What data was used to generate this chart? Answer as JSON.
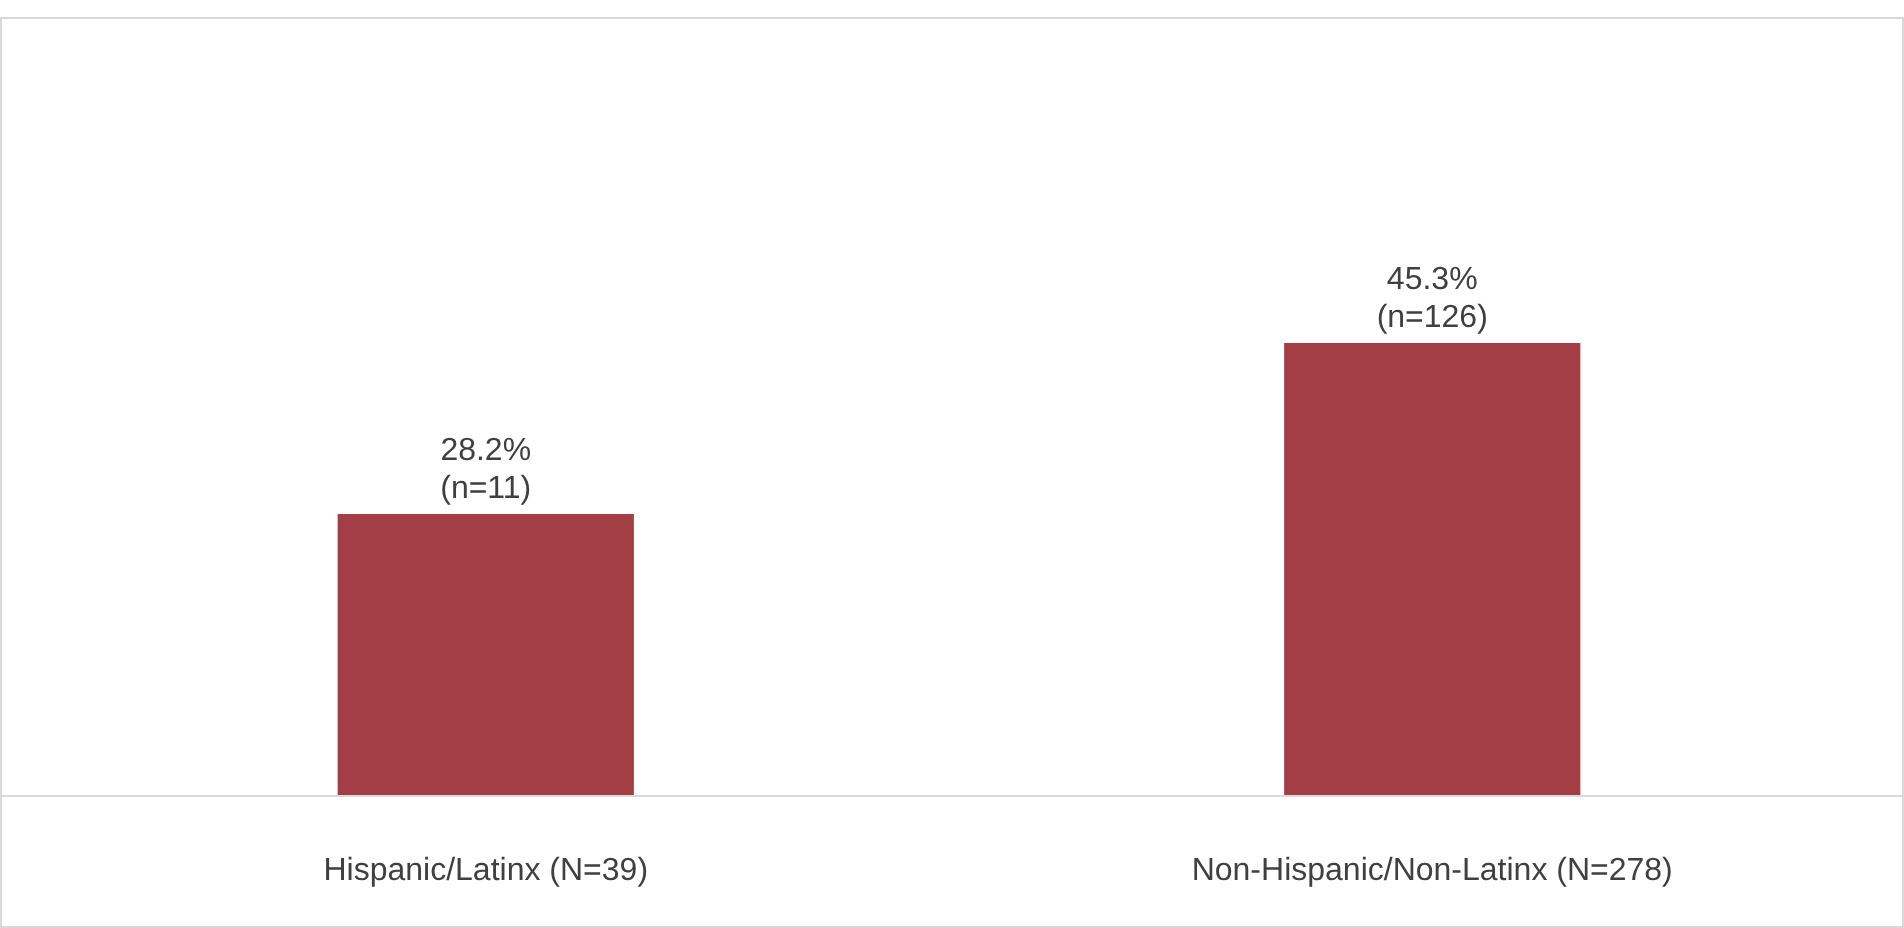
{
  "chart_data": {
    "type": "bar",
    "categories": [
      "Hispanic/Latinx (N=39)",
      "Non-Hispanic/Non-Latinx (N=278)"
    ],
    "values": [
      28.2,
      45.3
    ],
    "color": "#a33e45",
    "value_labels": [
      "28.2%\n(n=11)",
      "45.3%\n(n=126)"
    ]
  }
}
